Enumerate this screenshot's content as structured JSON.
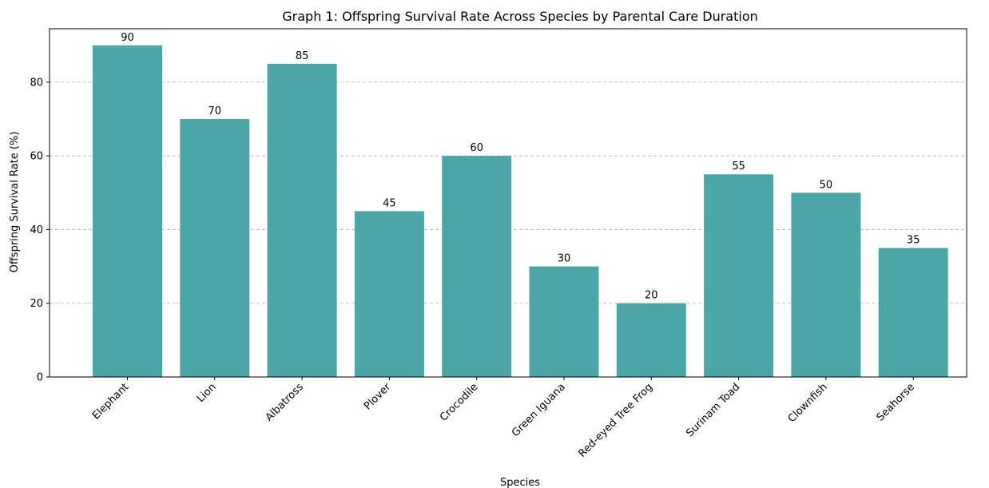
{
  "chart_data": {
    "type": "bar",
    "title": "Graph 1: Offspring Survival Rate Across Species by Parental Care Duration",
    "xlabel": "Species",
    "ylabel": "Offspring Survival Rate (%)",
    "categories": [
      "Elephant",
      "Lion",
      "Albatross",
      "Plover",
      "Crocodile",
      "Green Iguana",
      "Red-eyed Tree Frog",
      "Surinam Toad",
      "Clownfish",
      "Seahorse"
    ],
    "values": [
      90,
      70,
      85,
      45,
      60,
      30,
      20,
      55,
      50,
      35
    ],
    "ylim": [
      0,
      94.5
    ],
    "yticks": [
      0,
      20,
      40,
      60,
      80
    ],
    "grid": "y-dashed",
    "bar_color": "#4ca5a6",
    "data_labels": true,
    "legend": "none"
  }
}
